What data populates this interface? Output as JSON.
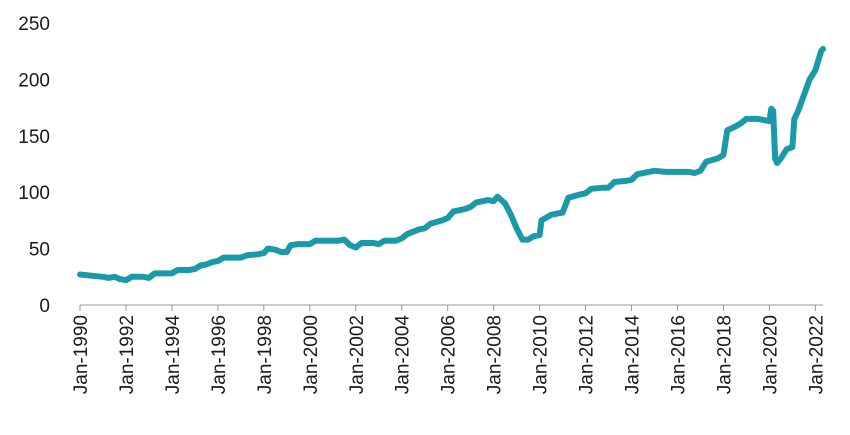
{
  "chart_data": {
    "type": "line",
    "title": "",
    "xlabel": "",
    "ylabel": "",
    "ylim": [
      0,
      250
    ],
    "yticks": [
      0,
      50,
      100,
      150,
      200,
      250
    ],
    "xticks": [
      "Jan-1990",
      "Jan-1992",
      "Jan-1994",
      "Jan-1996",
      "Jan-1998",
      "Jan-2000",
      "Jan-2002",
      "Jan-2004",
      "Jan-2006",
      "Jan-2008",
      "Jan-2010",
      "Jan-2012",
      "Jan-2014",
      "Jan-2016",
      "Jan-2018",
      "Jan-2020",
      "Jan-2022"
    ],
    "xlim": [
      "1990-01",
      "2022-05"
    ],
    "grid": false,
    "legend": "none",
    "line_color": "#1a9aa8",
    "series": [
      {
        "points": [
          [
            "1990-01",
            27
          ],
          [
            "1990-07",
            26
          ],
          [
            "1991-01",
            25
          ],
          [
            "1991-04",
            24
          ],
          [
            "1991-07",
            25
          ],
          [
            "1991-10",
            23
          ],
          [
            "1992-01",
            22
          ],
          [
            "1992-04",
            25
          ],
          [
            "1992-10",
            25
          ],
          [
            "1993-01",
            24
          ],
          [
            "1993-04",
            28
          ],
          [
            "1993-10",
            28
          ],
          [
            "1994-01",
            28
          ],
          [
            "1994-04",
            31
          ],
          [
            "1994-10",
            31
          ],
          [
            "1995-01",
            32
          ],
          [
            "1995-04",
            35
          ],
          [
            "1995-07",
            36
          ],
          [
            "1995-10",
            38
          ],
          [
            "1996-01",
            39
          ],
          [
            "1996-04",
            42
          ],
          [
            "1996-10",
            42
          ],
          [
            "1997-01",
            42
          ],
          [
            "1997-04",
            44
          ],
          [
            "1997-10",
            45
          ],
          [
            "1998-01",
            46
          ],
          [
            "1998-03",
            50
          ],
          [
            "1998-07",
            49
          ],
          [
            "1998-10",
            47
          ],
          [
            "1999-01",
            47
          ],
          [
            "1999-03",
            53
          ],
          [
            "1999-07",
            54
          ],
          [
            "2000-01",
            54
          ],
          [
            "2000-04",
            57
          ],
          [
            "2000-10",
            57
          ],
          [
            "2001-01",
            57
          ],
          [
            "2001-04",
            57
          ],
          [
            "2001-07",
            58
          ],
          [
            "2001-10",
            53
          ],
          [
            "2002-01",
            51
          ],
          [
            "2002-04",
            55
          ],
          [
            "2002-10",
            55
          ],
          [
            "2003-01",
            54
          ],
          [
            "2003-04",
            57
          ],
          [
            "2003-10",
            57
          ],
          [
            "2004-01",
            59
          ],
          [
            "2004-04",
            63
          ],
          [
            "2004-10",
            67
          ],
          [
            "2005-01",
            68
          ],
          [
            "2005-04",
            72
          ],
          [
            "2005-10",
            75
          ],
          [
            "2006-01",
            77
          ],
          [
            "2006-04",
            83
          ],
          [
            "2006-10",
            85
          ],
          [
            "2007-01",
            87
          ],
          [
            "2007-04",
            91
          ],
          [
            "2007-10",
            93
          ],
          [
            "2008-01",
            92
          ],
          [
            "2008-03",
            96
          ],
          [
            "2008-07",
            90
          ],
          [
            "2008-10",
            80
          ],
          [
            "2009-01",
            68
          ],
          [
            "2009-04",
            58
          ],
          [
            "2009-07",
            58
          ],
          [
            "2009-10",
            61
          ],
          [
            "2010-01",
            62
          ],
          [
            "2010-02",
            75
          ],
          [
            "2010-07",
            80
          ],
          [
            "2011-01",
            82
          ],
          [
            "2011-04",
            95
          ],
          [
            "2011-10",
            98
          ],
          [
            "2012-01",
            99
          ],
          [
            "2012-04",
            103
          ],
          [
            "2012-10",
            104
          ],
          [
            "2013-01",
            104
          ],
          [
            "2013-04",
            109
          ],
          [
            "2013-10",
            110
          ],
          [
            "2014-01",
            111
          ],
          [
            "2014-04",
            116
          ],
          [
            "2014-10",
            118
          ],
          [
            "2015-01",
            119
          ],
          [
            "2015-07",
            118
          ],
          [
            "2016-01",
            118
          ],
          [
            "2016-07",
            118
          ],
          [
            "2016-10",
            117
          ],
          [
            "2017-01",
            119
          ],
          [
            "2017-04",
            127
          ],
          [
            "2017-10",
            130
          ],
          [
            "2018-01",
            133
          ],
          [
            "2018-03",
            155
          ],
          [
            "2018-07",
            158
          ],
          [
            "2018-10",
            161
          ],
          [
            "2019-01",
            165
          ],
          [
            "2019-07",
            165
          ],
          [
            "2020-01",
            163
          ],
          [
            "2020-02",
            174
          ],
          [
            "2020-03",
            172
          ],
          [
            "2020-04",
            130
          ],
          [
            "2020-05",
            126
          ],
          [
            "2020-07",
            130
          ],
          [
            "2020-10",
            138
          ],
          [
            "2021-01",
            140
          ],
          [
            "2021-02",
            165
          ],
          [
            "2021-04",
            172
          ],
          [
            "2021-07",
            186
          ],
          [
            "2021-10",
            200
          ],
          [
            "2022-01",
            208
          ],
          [
            "2022-04",
            225
          ],
          [
            "2022-05",
            227
          ]
        ]
      }
    ]
  }
}
